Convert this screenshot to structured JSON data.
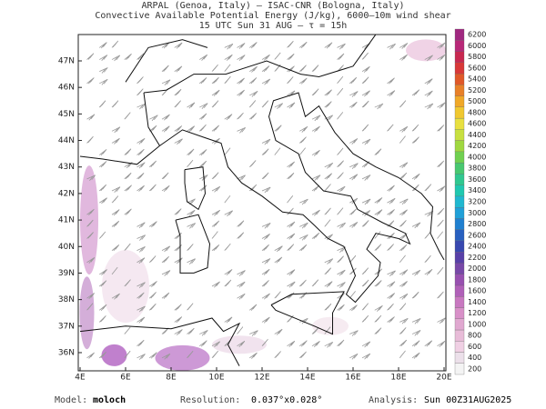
{
  "header": {
    "lines": [
      "ARPAL (Genoa, Italy)  –  ISAC-CNR (Bologna, Italy)",
      "Convective Available Potential Energy (J/kg), 6000–10m wind shear",
      "15 UTC Sun 31 AUG  –  τ = 15h"
    ]
  },
  "map": {
    "lon_ticks": [
      {
        "value": 4,
        "label": "4E"
      },
      {
        "value": 6,
        "label": "6E"
      },
      {
        "value": 8,
        "label": "8E"
      },
      {
        "value": 10,
        "label": "10E"
      },
      {
        "value": 12,
        "label": "12E"
      },
      {
        "value": 14,
        "label": "14E"
      },
      {
        "value": 16,
        "label": "16E"
      },
      {
        "value": 18,
        "label": "18E"
      },
      {
        "value": 20,
        "label": "20E"
      }
    ],
    "lat_ticks": [
      {
        "value": 36,
        "label": "36N"
      },
      {
        "value": 37,
        "label": "37N"
      },
      {
        "value": 38,
        "label": "38N"
      },
      {
        "value": 39,
        "label": "39N"
      },
      {
        "value": 40,
        "label": "40N"
      },
      {
        "value": 41,
        "label": "41N"
      },
      {
        "value": 42,
        "label": "42N"
      },
      {
        "value": 43,
        "label": "43N"
      },
      {
        "value": 44,
        "label": "44N"
      },
      {
        "value": 45,
        "label": "45N"
      },
      {
        "value": 46,
        "label": "46N"
      },
      {
        "value": 47,
        "label": "47N"
      }
    ]
  },
  "colorbar": {
    "levels": [
      200,
      400,
      600,
      800,
      1000,
      1200,
      1400,
      1600,
      1800,
      2000,
      2200,
      2400,
      2600,
      2800,
      3000,
      3200,
      3400,
      3600,
      3800,
      4000,
      4200,
      4400,
      4600,
      4800,
      5000,
      5200,
      5400,
      5600,
      5800,
      6000,
      6200
    ],
    "colors": [
      "#f4f4f4",
      "#ece0ea",
      "#f0d0e4",
      "#e8bcd8",
      "#e0a8d0",
      "#d890c8",
      "#c878c0",
      "#b060b8",
      "#9850b0",
      "#7848a8",
      "#5840a8",
      "#3848b0",
      "#2860c0",
      "#2080d0",
      "#20a0d8",
      "#20b8d0",
      "#20c8b0",
      "#30c890",
      "#48c870",
      "#70d050",
      "#a0d840",
      "#c8e040",
      "#e8e040",
      "#f0c830",
      "#f0a828",
      "#e88028",
      "#e05828",
      "#d83838",
      "#c82850",
      "#b82878",
      "#a02880"
    ]
  },
  "footer": {
    "model_label": "Model:",
    "model": "moloch",
    "resolution_label": "Resolution:",
    "resolution": "0.037°x0.028°",
    "analysis_label": "Analysis:",
    "analysis": "Sun 00Z31AUG2025"
  }
}
